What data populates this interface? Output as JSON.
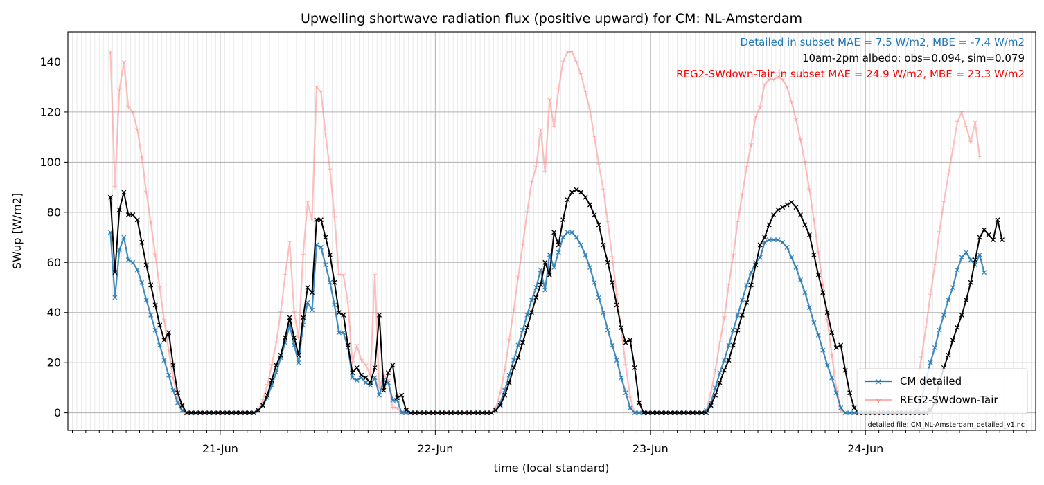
{
  "chart_data": {
    "type": "line",
    "title": "Upwelling shortwave radiation flux (positive upward) for CM: NL-Amsterdam",
    "xlabel": "time (local standard)",
    "ylabel": "SWup [W/m2]",
    "ylim": [
      -7,
      152
    ],
    "yticks": [
      0,
      20,
      40,
      60,
      80,
      100,
      120,
      140
    ],
    "xlim_hours": [
      -34,
      182
    ],
    "x_tick_labels": [
      {
        "hour": 0,
        "label": "21-Jun"
      },
      {
        "hour": 48,
        "label": "22-Jun"
      },
      {
        "hour": 96,
        "label": "23-Jun"
      },
      {
        "hour": 144,
        "label": "24-Jun"
      }
    ],
    "grid": true,
    "legend_position": "lower-right",
    "annotations": [
      {
        "text": "Detailed in subset MAE = 7.5 W/m2, MBE = -7.4 W/m2",
        "color": "#1f77b4"
      },
      {
        "text": "10am-2pm albedo: obs=0.094, sim=0.079",
        "color": "#000000"
      },
      {
        "text": "REG2-SWdown-Tair in subset MAE = 24.9 W/m2, MBE = 23.3 W/m2",
        "color": "#ff0000"
      }
    ],
    "footnote": "detailed file: CM_NL-Amsterdam_detailed_v1.nc",
    "x_start_hour": -24.5,
    "x_step_hours": 1,
    "series": [
      {
        "name": "CM detailed",
        "color": "#1f77b4",
        "marker": "x",
        "in_legend": true,
        "values": [
          72,
          46,
          65,
          70,
          61,
          60,
          57,
          52,
          45,
          39,
          33,
          27,
          21,
          15,
          9,
          4,
          1,
          0,
          0,
          0,
          0,
          0,
          0,
          0,
          0,
          0,
          0,
          0,
          0,
          0,
          0,
          0,
          0,
          1,
          3,
          6,
          11,
          16,
          22,
          28,
          35,
          27,
          20,
          35,
          44,
          41,
          67,
          66,
          59,
          52,
          43,
          32,
          32,
          26,
          14,
          13,
          14,
          12,
          11,
          14,
          7,
          13,
          12,
          5,
          5,
          0,
          0,
          0,
          0,
          0,
          0,
          0,
          0,
          0,
          0,
          0,
          0,
          0,
          0,
          0,
          0,
          0,
          0,
          0,
          0,
          0,
          1,
          4,
          9,
          15,
          21,
          27,
          33,
          39,
          45,
          50,
          57,
          49,
          63,
          58,
          64,
          70,
          72,
          72,
          70,
          67,
          63,
          58,
          52,
          46,
          40,
          33,
          27,
          21,
          14,
          8,
          2,
          0,
          0,
          0,
          0,
          0,
          0,
          0,
          0,
          0,
          0,
          0,
          0,
          0,
          0,
          0,
          0,
          1,
          4,
          10,
          16,
          21,
          27,
          33,
          39,
          45,
          51,
          56,
          60,
          62,
          68,
          69,
          69,
          69,
          68,
          66,
          62,
          58,
          53,
          48,
          42,
          36,
          31,
          25,
          19,
          14,
          8,
          2,
          0,
          0,
          0,
          0,
          0,
          0,
          0,
          0,
          0,
          0,
          0,
          0,
          0,
          0,
          0,
          0,
          1,
          5,
          13,
          20,
          26,
          33,
          39,
          45,
          50,
          57,
          62,
          64,
          61,
          59,
          63,
          56
        ]
      },
      {
        "name": "REG2-SWdown-Tair",
        "color": "#ff7f7f",
        "marker": "tri",
        "in_legend": true,
        "values": [
          144,
          90,
          129,
          140,
          122,
          120,
          113,
          102,
          88,
          76,
          63,
          50,
          37,
          25,
          14,
          6,
          1,
          0,
          0,
          0,
          0,
          0,
          0,
          0,
          0,
          0,
          0,
          0,
          0,
          0,
          0,
          0,
          0,
          1,
          5,
          11,
          19,
          28,
          40,
          55,
          68,
          40,
          30,
          63,
          84,
          77,
          130,
          128,
          111,
          97,
          78,
          55,
          55,
          44,
          20,
          27,
          21,
          19,
          15,
          55,
          10,
          15,
          13,
          2,
          2,
          0,
          0,
          0,
          0,
          0,
          0,
          0,
          0,
          0,
          0,
          0,
          0,
          0,
          0,
          0,
          0,
          0,
          0,
          0,
          0,
          0,
          2,
          8,
          17,
          29,
          41,
          54,
          67,
          80,
          92,
          98,
          113,
          96,
          125,
          114,
          129,
          140,
          144,
          144,
          140,
          135,
          128,
          121,
          110,
          99,
          89,
          76,
          62,
          47,
          33,
          19,
          6,
          0,
          0,
          0,
          0,
          0,
          0,
          0,
          0,
          0,
          0,
          0,
          0,
          0,
          0,
          0,
          0,
          1,
          8,
          17,
          28,
          38,
          51,
          63,
          76,
          87,
          98,
          107,
          118,
          122,
          131,
          133,
          133,
          134,
          133,
          130,
          124,
          117,
          109,
          100,
          89,
          77,
          64,
          51,
          37,
          23,
          10,
          1,
          0,
          0,
          0,
          0,
          0,
          0,
          0,
          0,
          0,
          0,
          0,
          0,
          0,
          0,
          0,
          1,
          10,
          22,
          34,
          47,
          59,
          72,
          84,
          95,
          105,
          116,
          120,
          114,
          108,
          116,
          102
        ]
      },
      {
        "name": "",
        "color": "#000000",
        "marker": "x",
        "in_legend": false,
        "values": [
          86,
          56,
          81,
          88,
          79,
          79,
          77,
          68,
          59,
          51,
          43,
          35,
          29,
          32,
          19,
          8,
          3,
          0,
          0,
          0,
          0,
          0,
          0,
          0,
          0,
          0,
          0,
          0,
          0,
          0,
          0,
          0,
          0,
          1,
          3,
          7,
          13,
          19,
          23,
          30,
          38,
          30,
          23,
          38,
          50,
          48,
          77,
          77,
          70,
          63,
          52,
          40,
          39,
          27,
          16,
          18,
          15,
          14,
          12,
          18,
          39,
          9,
          16,
          19,
          6,
          7,
          1,
          0,
          0,
          0,
          0,
          0,
          0,
          0,
          0,
          0,
          0,
          0,
          0,
          0,
          0,
          0,
          0,
          0,
          0,
          0,
          1,
          3,
          7,
          12,
          18,
          22,
          28,
          34,
          40,
          46,
          51,
          60,
          55,
          72,
          67,
          77,
          85,
          88,
          89,
          88,
          86,
          83,
          79,
          75,
          67,
          60,
          52,
          43,
          34,
          28,
          29,
          18,
          4,
          0,
          0,
          0,
          0,
          0,
          0,
          0,
          0,
          0,
          0,
          0,
          0,
          0,
          0,
          0,
          3,
          7,
          12,
          17,
          21,
          27,
          33,
          39,
          44,
          51,
          59,
          67,
          70,
          75,
          79,
          81,
          82,
          83,
          84,
          82,
          79,
          75,
          71,
          63,
          55,
          48,
          40,
          32,
          26,
          27,
          17,
          8,
          2,
          0,
          0,
          0,
          0,
          0,
          0,
          0,
          0,
          0,
          0,
          0,
          0,
          0,
          0,
          0,
          0,
          1,
          4,
          12,
          18,
          23,
          29,
          34,
          39,
          45,
          52,
          61,
          70,
          73,
          71,
          69,
          77,
          69
        ]
      }
    ]
  }
}
